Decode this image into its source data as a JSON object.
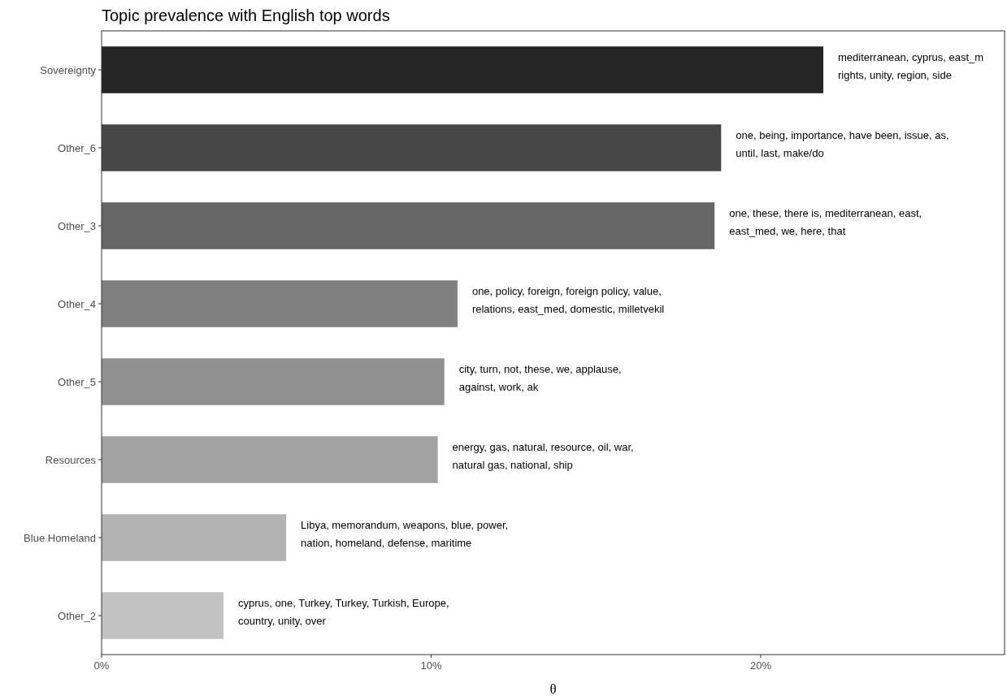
{
  "chart_data": {
    "type": "bar",
    "orientation": "horizontal",
    "title": "Topic prevalence with English top words",
    "xlabel": "θ",
    "categories": [
      "Sovereignty",
      "Other_6",
      "Other_3",
      "Other_4",
      "Other_5",
      "Resources",
      "Blue Homeland",
      "Other_2"
    ],
    "values": [
      21.9,
      18.8,
      18.6,
      10.8,
      10.4,
      10.2,
      5.6,
      3.7
    ],
    "colors": [
      "#262626",
      "#474747",
      "#666666",
      "#808080",
      "#909090",
      "#a2a2a2",
      "#b3b3b3",
      "#c2c2c2"
    ],
    "xlim": [
      0,
      27.4
    ],
    "xticks": [
      {
        "value": 0,
        "label": "0%"
      },
      {
        "value": 10,
        "label": "10%"
      },
      {
        "value": 20,
        "label": "20%"
      }
    ],
    "grid": false,
    "annotations": [
      {
        "text": "mediterranean, cyprus, east_m\nrights, unity, region, side",
        "x": 21.9,
        "y": "Sovereignty"
      },
      {
        "text": "one, being, importance, have been, issue, as,\nuntil, last, make/do",
        "x": 18.8,
        "y": "Other_6"
      },
      {
        "text": "one, these, there is, mediterranean, east,\neast_med, we, here, that",
        "x": 18.6,
        "y": "Other_3"
      },
      {
        "text": "one, policy, foreign, foreign policy, value,\nrelations, east_med, domestic, milletvekil",
        "x": 10.8,
        "y": "Other_4"
      },
      {
        "text": "city, turn, not, these, we, applause,\nagainst, work, ak",
        "x": 10.4,
        "y": "Other_5"
      },
      {
        "text": "energy, gas, natural, resource, oil, war,\nnatural gas, national, ship",
        "x": 10.2,
        "y": "Resources"
      },
      {
        "text": "Libya, memorandum, weapons, blue, power,\nnation, homeland, defense, maritime",
        "x": 5.6,
        "y": "Blue Homeland"
      },
      {
        "text": "cyprus, one, Turkey, Turkey, Turkish, Europe,\ncountry, unity, over",
        "x": 3.7,
        "y": "Other_2"
      }
    ]
  }
}
